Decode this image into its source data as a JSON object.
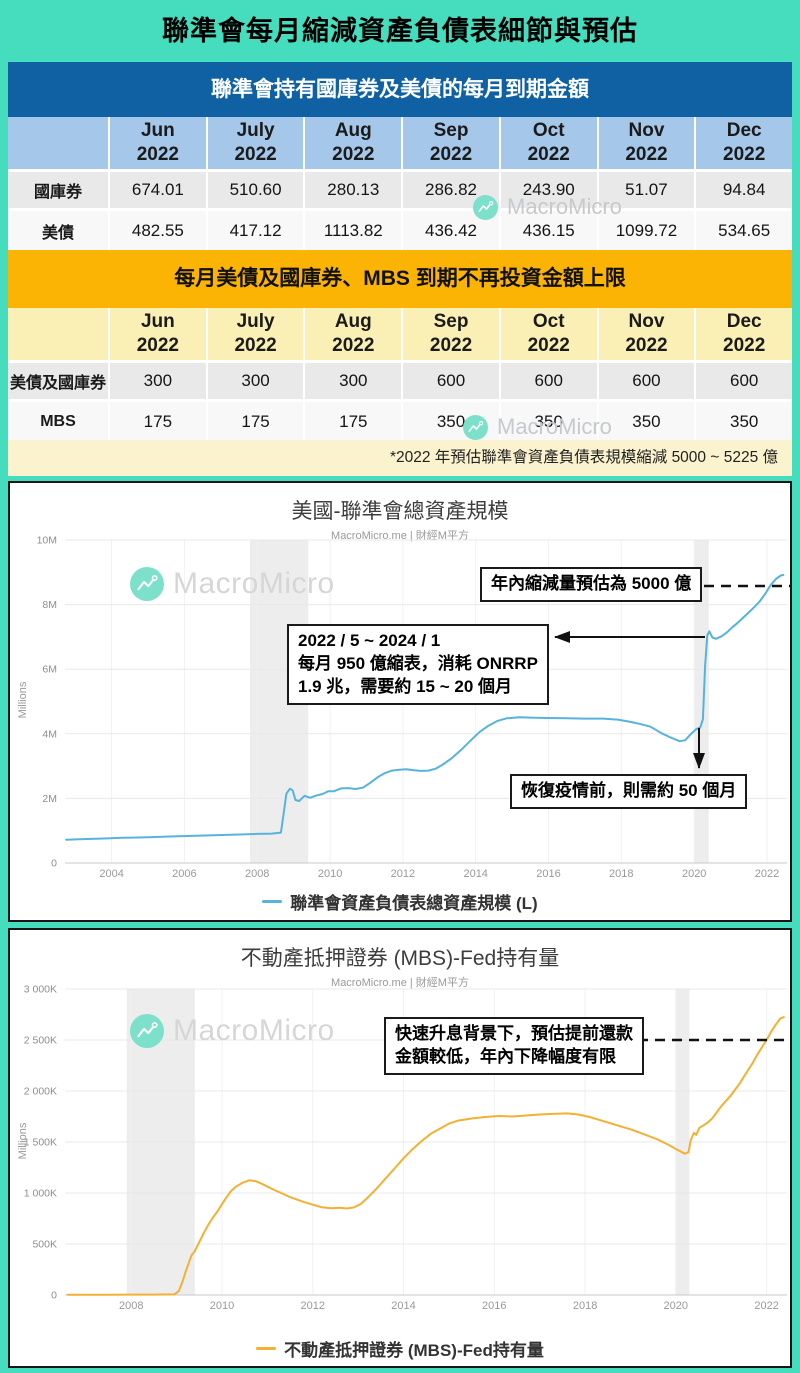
{
  "page": {
    "title": "聯準會每月縮減資產負債表細節與預估"
  },
  "watermark": {
    "text": "MacroMicro"
  },
  "section1": {
    "header": "聯準會持有國庫券及美債的每月到期金額",
    "columns": [
      "Jun\n2022",
      "July\n2022",
      "Aug\n2022",
      "Sep\n2022",
      "Oct\n2022",
      "Nov\n2022",
      "Dec\n2022"
    ],
    "rows": [
      {
        "label": "國庫券",
        "values": [
          "674.01",
          "510.60",
          "280.13",
          "286.82",
          "243.90",
          "51.07",
          "94.84"
        ]
      },
      {
        "label": "美債",
        "values": [
          "482.55",
          "417.12",
          "1113.82",
          "436.42",
          "436.15",
          "1099.72",
          "534.65"
        ]
      }
    ]
  },
  "section2": {
    "header": "每月美債及國庫券、MBS 到期不再投資金額上限",
    "columns": [
      "Jun\n2022",
      "July\n2022",
      "Aug\n2022",
      "Sep\n2022",
      "Oct\n2022",
      "Nov\n2022",
      "Dec\n2022"
    ],
    "rows": [
      {
        "label": "美債及國庫券",
        "values": [
          "300",
          "300",
          "300",
          "600",
          "600",
          "600",
          "600"
        ]
      },
      {
        "label": "MBS",
        "values": [
          "175",
          "175",
          "175",
          "350",
          "350",
          "350",
          "350"
        ]
      }
    ],
    "note": "*2022 年預估聯準會資產負債表規模縮減 5000 ~ 5225 億"
  },
  "chart_data": [
    {
      "type": "line",
      "title": "美國-聯準會總資產規模",
      "subtitle": "MacroMicro.me | 財經M平方",
      "ylabel": "Millions",
      "xlim": [
        2002.72,
        2022.55
      ],
      "ylim": [
        0,
        10
      ],
      "x_ticks": [
        2004,
        2006,
        2008,
        2010,
        2012,
        2014,
        2016,
        2018,
        2020,
        2022
      ],
      "y_ticks": [
        {
          "v": 10,
          "l": "10M"
        },
        {
          "v": 8,
          "l": "8M"
        },
        {
          "v": 6,
          "l": "6M"
        },
        {
          "v": 4,
          "l": "4M"
        },
        {
          "v": 2,
          "l": "2M"
        },
        {
          "v": 0,
          "l": "0"
        }
      ],
      "recession_bands": [
        [
          2007.8,
          2009.4
        ],
        [
          2020.0,
          2020.4
        ]
      ],
      "line_color": "#56b3dd",
      "grid": true,
      "legend_position": "bottom",
      "series": [
        {
          "name": "聯準會資產負債表總資產規模 (L)",
          "points": [
            [
              2002.75,
              0.72
            ],
            [
              2003.2,
              0.74
            ],
            [
              2003.8,
              0.76
            ],
            [
              2004.3,
              0.78
            ],
            [
              2005,
              0.8
            ],
            [
              2005.6,
              0.82
            ],
            [
              2006.2,
              0.84
            ],
            [
              2006.8,
              0.86
            ],
            [
              2007.4,
              0.88
            ],
            [
              2008.0,
              0.9
            ],
            [
              2008.4,
              0.91
            ],
            [
              2008.65,
              0.94
            ],
            [
              2008.72,
              1.5
            ],
            [
              2008.8,
              2.15
            ],
            [
              2008.9,
              2.3
            ],
            [
              2008.97,
              2.25
            ],
            [
              2009.05,
              1.95
            ],
            [
              2009.15,
              1.92
            ],
            [
              2009.3,
              2.08
            ],
            [
              2009.45,
              2.02
            ],
            [
              2009.6,
              2.08
            ],
            [
              2009.8,
              2.14
            ],
            [
              2009.95,
              2.22
            ],
            [
              2010.1,
              2.22
            ],
            [
              2010.3,
              2.31
            ],
            [
              2010.5,
              2.32
            ],
            [
              2010.7,
              2.29
            ],
            [
              2010.9,
              2.33
            ],
            [
              2011.1,
              2.48
            ],
            [
              2011.3,
              2.65
            ],
            [
              2011.5,
              2.78
            ],
            [
              2011.7,
              2.86
            ],
            [
              2011.9,
              2.89
            ],
            [
              2012.1,
              2.9
            ],
            [
              2012.3,
              2.87
            ],
            [
              2012.5,
              2.85
            ],
            [
              2012.7,
              2.86
            ],
            [
              2012.9,
              2.92
            ],
            [
              2013.1,
              3.05
            ],
            [
              2013.35,
              3.25
            ],
            [
              2013.6,
              3.5
            ],
            [
              2013.85,
              3.78
            ],
            [
              2014.1,
              4.05
            ],
            [
              2014.35,
              4.25
            ],
            [
              2014.6,
              4.4
            ],
            [
              2014.85,
              4.48
            ],
            [
              2015.2,
              4.51
            ],
            [
              2015.6,
              4.5
            ],
            [
              2016.0,
              4.49
            ],
            [
              2016.5,
              4.48
            ],
            [
              2017.0,
              4.47
            ],
            [
              2017.5,
              4.47
            ],
            [
              2017.9,
              4.44
            ],
            [
              2018.2,
              4.38
            ],
            [
              2018.5,
              4.31
            ],
            [
              2018.8,
              4.22
            ],
            [
              2019.1,
              4.02
            ],
            [
              2019.35,
              3.89
            ],
            [
              2019.6,
              3.77
            ],
            [
              2019.75,
              3.8
            ],
            [
              2019.9,
              3.98
            ],
            [
              2020.05,
              4.14
            ],
            [
              2020.17,
              4.2
            ],
            [
              2020.24,
              4.45
            ],
            [
              2020.3,
              6.1
            ],
            [
              2020.36,
              7.05
            ],
            [
              2020.42,
              7.17
            ],
            [
              2020.5,
              6.98
            ],
            [
              2020.6,
              6.94
            ],
            [
              2020.75,
              7.02
            ],
            [
              2020.9,
              7.14
            ],
            [
              2021.05,
              7.3
            ],
            [
              2021.2,
              7.44
            ],
            [
              2021.35,
              7.6
            ],
            [
              2021.5,
              7.76
            ],
            [
              2021.65,
              7.92
            ],
            [
              2021.8,
              8.1
            ],
            [
              2021.95,
              8.33
            ],
            [
              2022.1,
              8.6
            ],
            [
              2022.25,
              8.8
            ],
            [
              2022.38,
              8.9
            ],
            [
              2022.45,
              8.92
            ]
          ]
        }
      ],
      "annotations": [
        {
          "text": "年內縮減量預估為 5000 億"
        },
        {
          "text": "2022 / 5 ~ 2024 / 1\n每月 950 億縮表，消耗 ONRRP\n1.9 兆，需要約 15 ~ 20 個月"
        },
        {
          "text": "恢復疫情前，則需約 50 個月"
        }
      ]
    },
    {
      "type": "line",
      "title": "不動產抵押證券 (MBS)-Fed持有量",
      "subtitle": "MacroMicro.me | 財經M平方",
      "ylabel": "Millions",
      "xlim": [
        2006.54,
        2022.45
      ],
      "ylim": [
        0,
        3000
      ],
      "x_ticks": [
        2008,
        2010,
        2012,
        2014,
        2016,
        2018,
        2020,
        2022
      ],
      "y_ticks": [
        {
          "v": 3000,
          "l": "3 000K"
        },
        {
          "v": 2500,
          "l": "2 500K"
        },
        {
          "v": 2000,
          "l": "2 000K"
        },
        {
          "v": 1500,
          "l": "1 500K"
        },
        {
          "v": 1000,
          "l": "1 000K"
        },
        {
          "v": 500,
          "l": "500K"
        },
        {
          "v": 0,
          "l": "0"
        }
      ],
      "recession_bands": [
        [
          2007.9,
          2009.4
        ],
        [
          2020.0,
          2020.3
        ]
      ],
      "line_color": "#f2b134",
      "grid": true,
      "legend_position": "bottom",
      "series": [
        {
          "name": "不動產抵押證券 (MBS)-Fed持有量",
          "points": [
            [
              2006.6,
              2
            ],
            [
              2007.5,
              3
            ],
            [
              2008.5,
              4
            ],
            [
              2008.95,
              6
            ],
            [
              2009.05,
              40
            ],
            [
              2009.12,
              120
            ],
            [
              2009.2,
              230
            ],
            [
              2009.28,
              330
            ],
            [
              2009.33,
              390
            ],
            [
              2009.4,
              430
            ],
            [
              2009.5,
              520
            ],
            [
              2009.6,
              610
            ],
            [
              2009.7,
              690
            ],
            [
              2009.8,
              760
            ],
            [
              2009.9,
              820
            ],
            [
              2010.0,
              890
            ],
            [
              2010.1,
              960
            ],
            [
              2010.2,
              1020
            ],
            [
              2010.3,
              1060
            ],
            [
              2010.45,
              1100
            ],
            [
              2010.6,
              1125
            ],
            [
              2010.75,
              1115
            ],
            [
              2010.9,
              1085
            ],
            [
              2011.1,
              1040
            ],
            [
              2011.3,
              1000
            ],
            [
              2011.5,
              960
            ],
            [
              2011.75,
              920
            ],
            [
              2012.0,
              885
            ],
            [
              2012.2,
              860
            ],
            [
              2012.4,
              850
            ],
            [
              2012.6,
              855
            ],
            [
              2012.75,
              848
            ],
            [
              2012.9,
              858
            ],
            [
              2013.05,
              890
            ],
            [
              2013.2,
              950
            ],
            [
              2013.4,
              1040
            ],
            [
              2013.6,
              1140
            ],
            [
              2013.8,
              1240
            ],
            [
              2014.0,
              1340
            ],
            [
              2014.2,
              1430
            ],
            [
              2014.4,
              1510
            ],
            [
              2014.6,
              1580
            ],
            [
              2014.8,
              1630
            ],
            [
              2015.0,
              1680
            ],
            [
              2015.2,
              1710
            ],
            [
              2015.5,
              1730
            ],
            [
              2015.8,
              1745
            ],
            [
              2016.1,
              1755
            ],
            [
              2016.4,
              1750
            ],
            [
              2016.7,
              1760
            ],
            [
              2017.0,
              1770
            ],
            [
              2017.3,
              1775
            ],
            [
              2017.6,
              1780
            ],
            [
              2017.85,
              1770
            ],
            [
              2018.1,
              1745
            ],
            [
              2018.4,
              1705
            ],
            [
              2018.7,
              1665
            ],
            [
              2019.0,
              1625
            ],
            [
              2019.3,
              1575
            ],
            [
              2019.6,
              1525
            ],
            [
              2019.85,
              1470
            ],
            [
              2020.05,
              1420
            ],
            [
              2020.2,
              1385
            ],
            [
              2020.28,
              1400
            ],
            [
              2020.33,
              1520
            ],
            [
              2020.4,
              1590
            ],
            [
              2020.45,
              1570
            ],
            [
              2020.52,
              1640
            ],
            [
              2020.6,
              1660
            ],
            [
              2020.7,
              1690
            ],
            [
              2020.8,
              1730
            ],
            [
              2020.9,
              1790
            ],
            [
              2021.0,
              1850
            ],
            [
              2021.1,
              1900
            ],
            [
              2021.2,
              1950
            ],
            [
              2021.3,
              2010
            ],
            [
              2021.4,
              2070
            ],
            [
              2021.5,
              2140
            ],
            [
              2021.6,
              2210
            ],
            [
              2021.7,
              2280
            ],
            [
              2021.8,
              2360
            ],
            [
              2021.9,
              2430
            ],
            [
              2022.0,
              2500
            ],
            [
              2022.1,
              2580
            ],
            [
              2022.2,
              2650
            ],
            [
              2022.3,
              2710
            ],
            [
              2022.38,
              2725
            ]
          ]
        }
      ],
      "annotations": [
        {
          "text": "快速升息背景下，預估提前還款\n金額較低，年內下降幅度有限"
        }
      ]
    }
  ]
}
